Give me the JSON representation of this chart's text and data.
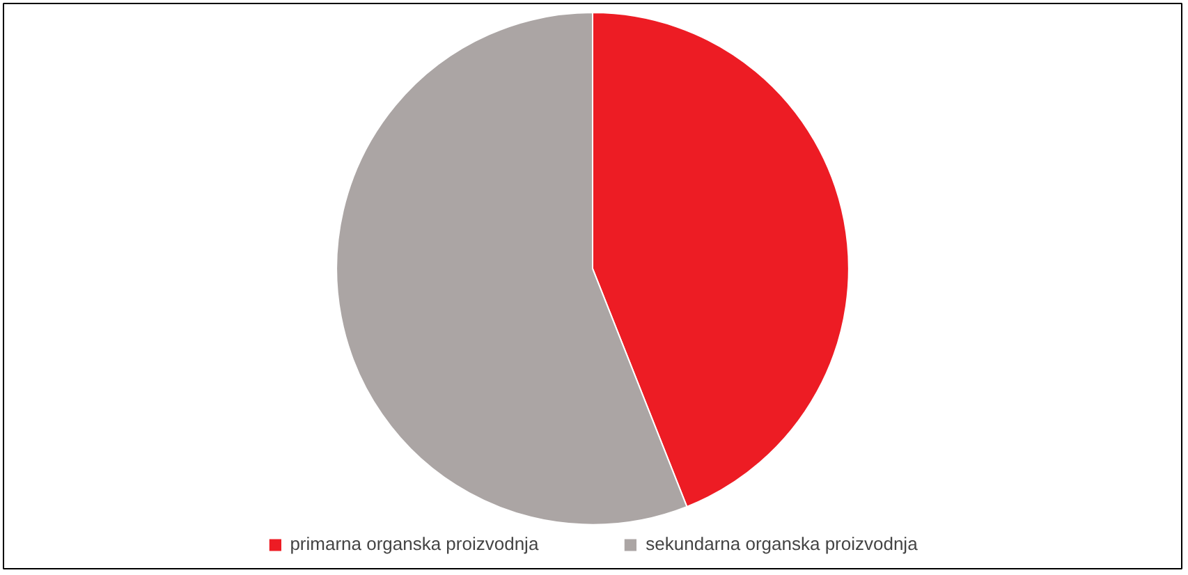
{
  "chart_data": {
    "type": "pie",
    "categories": [
      "primarna organska proizvodnja",
      "sekundarna organska proizvodnja"
    ],
    "values": [
      44,
      56
    ],
    "colors": [
      "#ed1c24",
      "#aba5a4"
    ],
    "legend": "bottom"
  }
}
